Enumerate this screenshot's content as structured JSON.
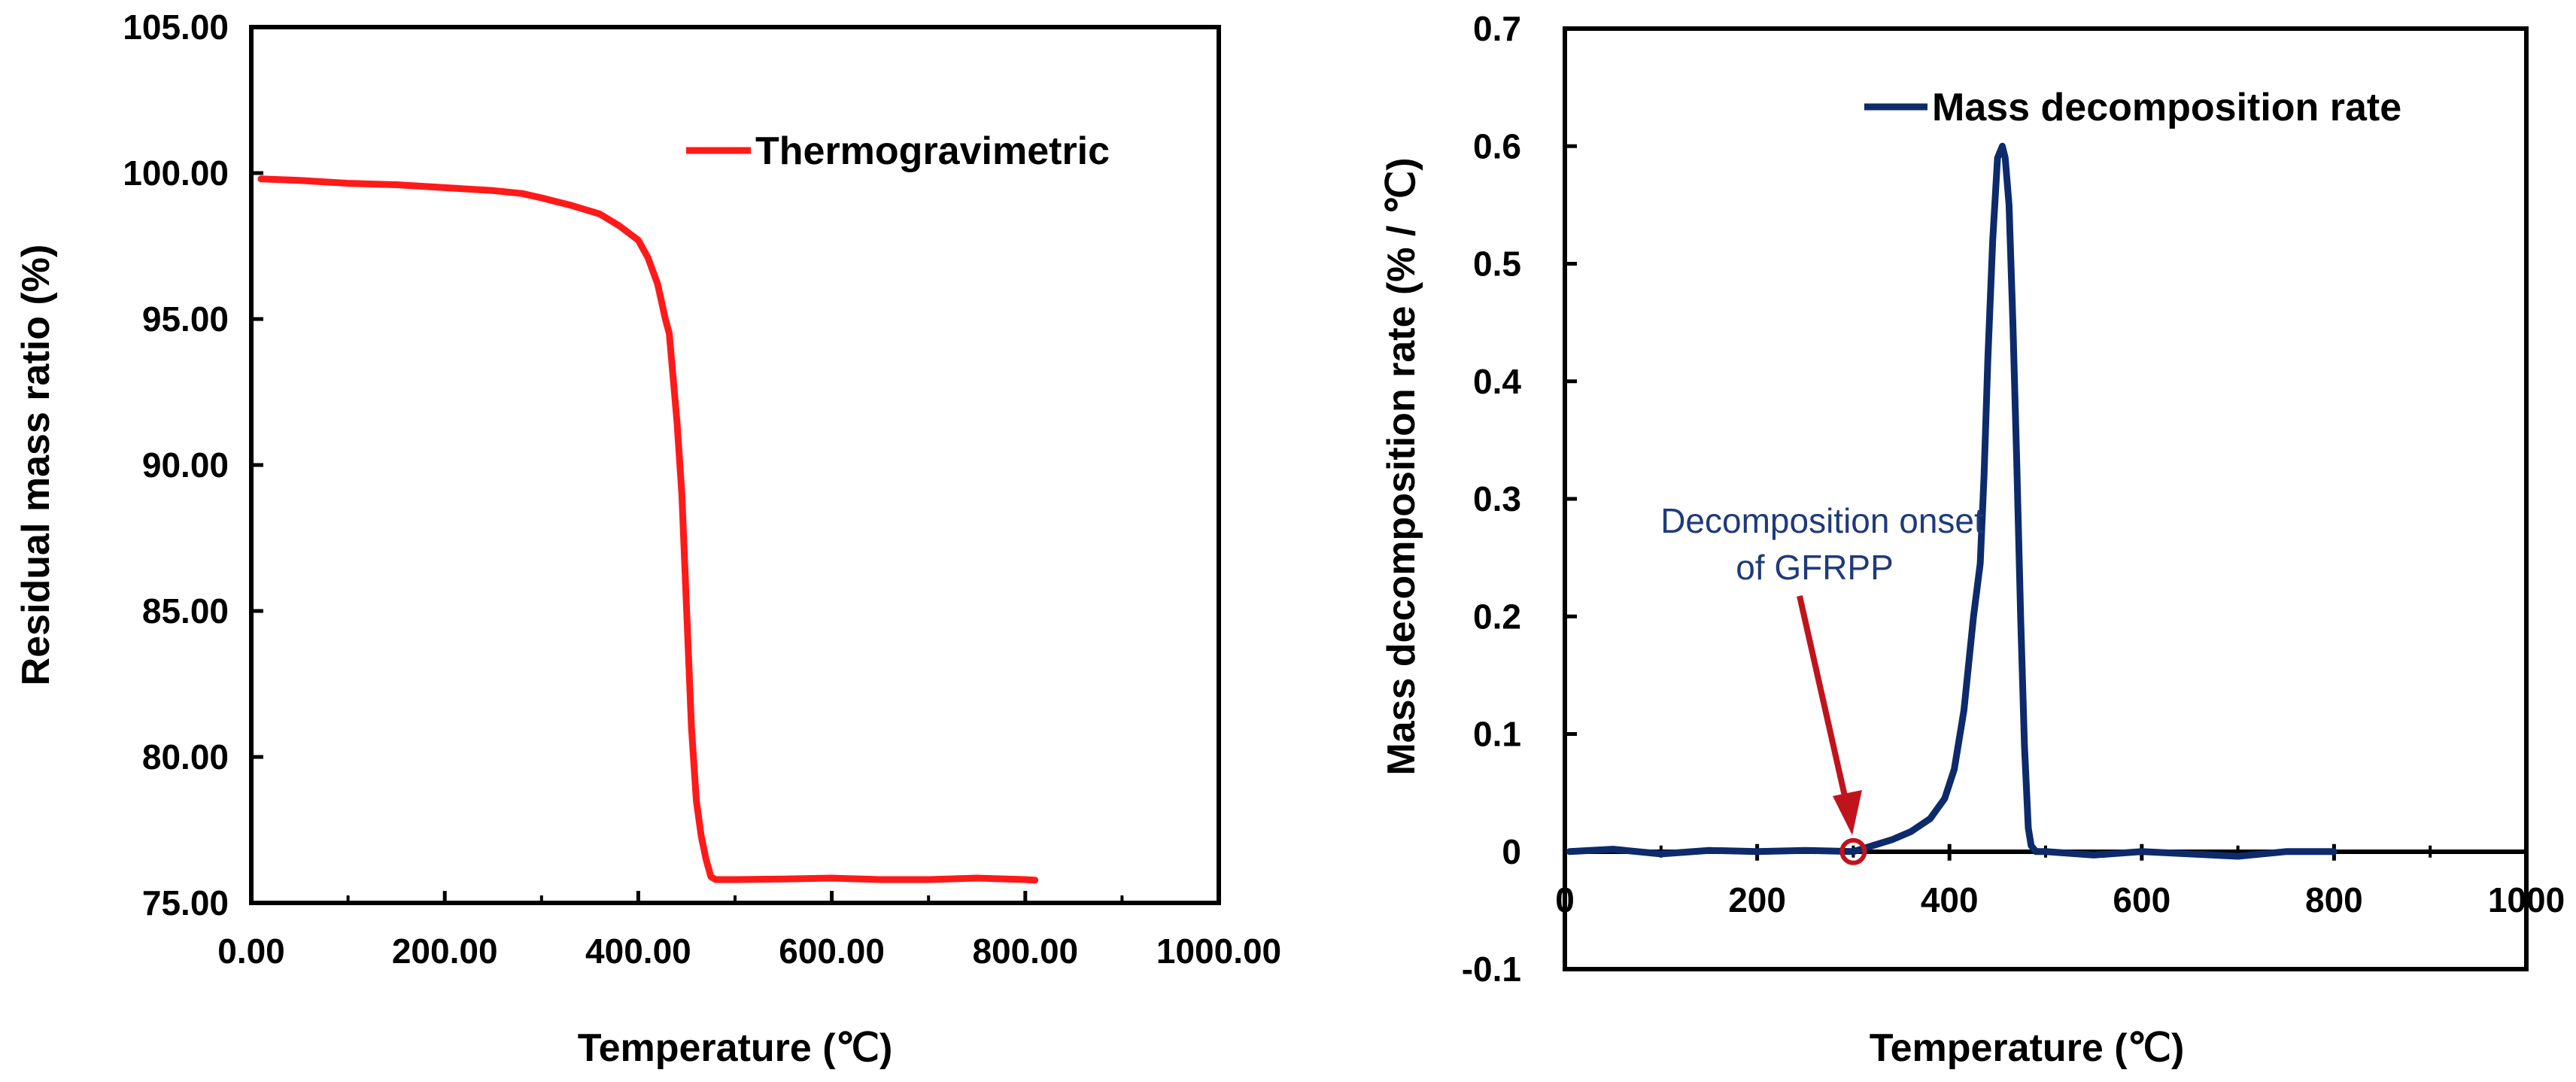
{
  "colors": {
    "tg_line": "#ff1a1a",
    "dtg_line": "#0d2a6b",
    "arrow": "#c0141c",
    "annotation_text": "#1f3a7a",
    "axis": "#000000"
  },
  "chart_data": [
    {
      "type": "line",
      "title": "",
      "xlabel": "Temperature (℃)",
      "ylabel": "Residual mass ratio (%)",
      "xlim": [
        0,
        1000
      ],
      "ylim": [
        75,
        105
      ],
      "x_ticks": [
        0,
        200,
        400,
        600,
        800,
        1000
      ],
      "x_tick_labels": [
        "0.00",
        "200.00",
        "400.00",
        "600.00",
        "800.00",
        "1000.00"
      ],
      "y_ticks": [
        75,
        80,
        85,
        90,
        95,
        100,
        105
      ],
      "y_tick_labels": [
        "75.00",
        "80.00",
        "85.00",
        "90.00",
        "95.00",
        "100.00",
        "105.00"
      ],
      "legend": "top-right",
      "grid": false,
      "series": [
        {
          "name": "Thermogravimetric",
          "x": [
            10,
            50,
            100,
            150,
            200,
            250,
            280,
            300,
            330,
            360,
            380,
            400,
            410,
            420,
            428,
            432,
            436,
            440,
            445,
            450,
            455,
            460,
            465,
            470,
            475,
            480,
            500,
            550,
            600,
            650,
            700,
            750,
            800,
            810
          ],
          "y": [
            99.8,
            99.75,
            99.65,
            99.6,
            99.5,
            99.4,
            99.3,
            99.15,
            98.9,
            98.6,
            98.2,
            97.7,
            97.1,
            96.2,
            95.0,
            94.5,
            93.0,
            91.5,
            89.0,
            85.0,
            81.0,
            78.5,
            77.3,
            76.5,
            75.9,
            75.8,
            75.8,
            75.82,
            75.85,
            75.8,
            75.8,
            75.85,
            75.8,
            75.78
          ]
        }
      ]
    },
    {
      "type": "line",
      "title": "",
      "xlabel": "Temperature (℃)",
      "ylabel": "Mass decomposition rate (% / ℃)",
      "xlim": [
        0,
        1000
      ],
      "ylim": [
        -0.1,
        0.7
      ],
      "x_ticks": [
        0,
        200,
        400,
        600,
        800,
        1000
      ],
      "x_tick_labels": [
        "0",
        "200",
        "400",
        "600",
        "800",
        "1000"
      ],
      "y_ticks": [
        -0.1,
        0,
        0.1,
        0.2,
        0.3,
        0.4,
        0.5,
        0.6,
        0.7
      ],
      "y_tick_labels": [
        "-0.1",
        "0",
        "0.1",
        "0.2",
        "0.3",
        "0.4",
        "0.5",
        "0.6",
        "0.7"
      ],
      "legend": "top-right",
      "grid": false,
      "series": [
        {
          "name": "Mass decomposition rate",
          "x": [
            5,
            50,
            100,
            150,
            200,
            250,
            300,
            320,
            340,
            360,
            380,
            395,
            405,
            415,
            425,
            432,
            436,
            440,
            445,
            450,
            455,
            458,
            462,
            466,
            470,
            474,
            478,
            482,
            485,
            490,
            500,
            550,
            600,
            650,
            700,
            750,
            800
          ],
          "y": [
            0.0,
            0.002,
            -0.002,
            0.001,
            0.0,
            0.001,
            0.0,
            0.005,
            0.01,
            0.017,
            0.028,
            0.045,
            0.07,
            0.12,
            0.2,
            0.245,
            0.32,
            0.42,
            0.52,
            0.59,
            0.6,
            0.59,
            0.55,
            0.45,
            0.33,
            0.2,
            0.09,
            0.02,
            0.005,
            0.0,
            0.0,
            -0.003,
            0.0,
            -0.002,
            -0.004,
            0.0,
            0.0
          ]
        }
      ],
      "annotation": {
        "lines": [
          "Decomposition onset",
          "of GFRPP"
        ],
        "target_x": 300,
        "target_y": 0
      }
    }
  ]
}
